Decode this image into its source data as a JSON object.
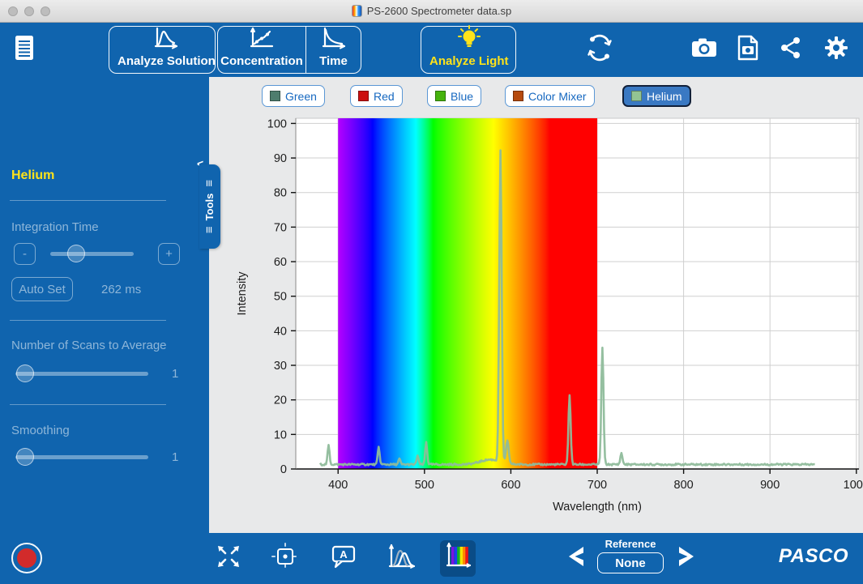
{
  "window": {
    "title": "PS-2600 Spectrometer data.sp"
  },
  "top_toolbar": {
    "analyze_solution": "Analyze Solution",
    "concentration": "Concentration",
    "time": "Time",
    "analyze_light": "Analyze Light"
  },
  "sidebar": {
    "source_name": "Helium",
    "integration": {
      "label": "Integration Time",
      "minus": "-",
      "plus": "+",
      "auto_set": "Auto Set",
      "value": "262 ms"
    },
    "scans": {
      "label": "Number of Scans to Average",
      "value": "1"
    },
    "smoothing": {
      "label": "Smoothing",
      "value": "1"
    },
    "tools_tab": "Tools"
  },
  "legend": {
    "items": [
      {
        "label": "Green",
        "swatch": "#4e7d6e",
        "selected": false
      },
      {
        "label": "Red",
        "swatch": "#cc1010",
        "selected": false
      },
      {
        "label": "Blue",
        "swatch": "#46b30c",
        "selected": false
      },
      {
        "label": "Color Mixer",
        "swatch": "#b64a0e",
        "selected": false
      },
      {
        "label": "Helium",
        "swatch": "#93c493",
        "selected": true
      }
    ]
  },
  "chart_data": {
    "type": "line",
    "title": "",
    "xlabel": "Wavelength (nm)",
    "ylabel": "Intensity",
    "xlim": [
      351,
      1003
    ],
    "ylim": [
      0,
      101.5
    ],
    "xticks": [
      400,
      500,
      600,
      700,
      800,
      900,
      1000
    ],
    "yticks": [
      0,
      10,
      20,
      30,
      40,
      50,
      60,
      70,
      80,
      90,
      100
    ],
    "grid": true,
    "spectrum_band_nm": [
      400,
      700
    ],
    "series": [
      {
        "name": "Helium",
        "color": "#8fbc9b",
        "baseline": 1.3,
        "x_start": 379,
        "x_end": 952,
        "peaks": [
          {
            "wl": 389,
            "intensity": 5.5,
            "width": 1.6
          },
          {
            "wl": 447,
            "intensity": 5.0,
            "width": 1.6
          },
          {
            "wl": 471,
            "intensity": 1.6,
            "width": 1.6
          },
          {
            "wl": 492,
            "intensity": 2.6,
            "width": 1.6
          },
          {
            "wl": 502,
            "intensity": 6.5,
            "width": 1.6
          },
          {
            "wl": 576,
            "intensity": 1.4,
            "width": 16
          },
          {
            "wl": 588,
            "intensity": 90,
            "width": 2.0
          },
          {
            "wl": 596,
            "intensity": 6.5,
            "width": 2.2
          },
          {
            "wl": 668,
            "intensity": 20,
            "width": 1.8
          },
          {
            "wl": 706,
            "intensity": 34,
            "width": 1.8
          },
          {
            "wl": 728,
            "intensity": 3.2,
            "width": 1.8
          }
        ]
      }
    ]
  },
  "bottom_toolbar": {
    "annotation_letter": "A",
    "reference_label": "Reference",
    "reference_value": "None",
    "brand": "PASCO"
  }
}
